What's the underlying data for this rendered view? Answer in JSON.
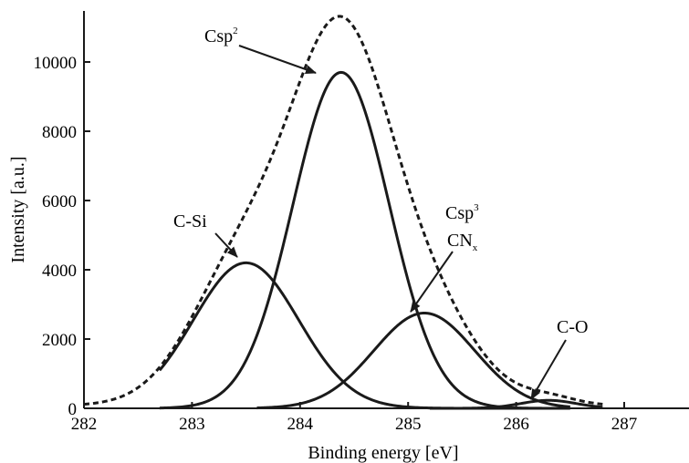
{
  "chart_data": {
    "type": "line",
    "title": "",
    "xlabel": "Binding energy [eV]",
    "ylabel": "Intensity [a.u.]",
    "xlim": [
      282,
      288
    ],
    "ylim": [
      0,
      11500
    ],
    "x_ticks": [
      282,
      283,
      284,
      285,
      286,
      287
    ],
    "y_ticks": [
      0,
      2000,
      4000,
      6000,
      8000,
      10000
    ],
    "x_tick_labels": [
      "282",
      "283",
      "284",
      "285",
      "286",
      "287"
    ],
    "y_tick_labels": [
      "0",
      "2000",
      "4000",
      "6000",
      "8000",
      "10000"
    ],
    "grid": false,
    "legend": "none",
    "series": [
      {
        "label": "C-Si",
        "style": "solid",
        "center": 283.5,
        "height": 4200,
        "fwhm": 1.15,
        "x_range": [
          282.7,
          286.3
        ]
      },
      {
        "label": "Csp2",
        "style": "solid",
        "center": 284.38,
        "height": 9700,
        "fwhm": 1.05,
        "x_range": [
          282.7,
          286.5
        ]
      },
      {
        "label": "Csp3 CNx",
        "style": "solid",
        "center": 285.15,
        "height": 2750,
        "fwhm": 1.1,
        "x_range": [
          283.6,
          286.5
        ]
      },
      {
        "label": "C-O",
        "style": "solid",
        "center": 286.3,
        "height": 230,
        "fwhm": 0.6,
        "x_range": [
          285.2,
          286.8
        ]
      },
      {
        "label": "envelope",
        "style": "dashed",
        "x_range": [
          282.0,
          286.8
        ]
      }
    ],
    "annotations": [
      {
        "id": "csp2",
        "base": "Csp",
        "sup": "2"
      },
      {
        "id": "csi",
        "base": "C-Si"
      },
      {
        "id": "csp3",
        "base": "Csp",
        "sup": "3"
      },
      {
        "id": "cnx",
        "base": "CN",
        "sub": "x"
      },
      {
        "id": "co",
        "base": "C-O"
      }
    ]
  },
  "colors": {
    "line": "#1a1a1a",
    "background": "#ffffff"
  }
}
